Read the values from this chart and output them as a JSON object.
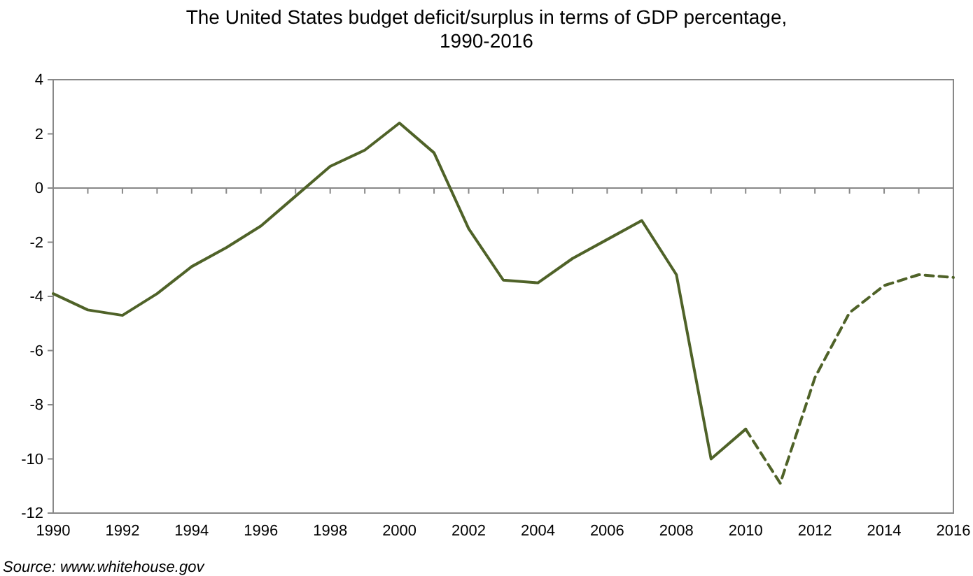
{
  "chart_data": {
    "type": "line",
    "title": "The United States budget deficit/surplus in terms of GDP percentage, 1990-2016",
    "xlim": [
      1990,
      2016
    ],
    "xticks": [
      1990,
      {
        "value": 1991,
        "label": null
      },
      1992,
      {
        "value": 1993,
        "label": null
      },
      1994,
      {
        "value": 1995,
        "label": null
      },
      1996,
      {
        "value": 1997,
        "label": null
      },
      1998,
      {
        "value": 1999,
        "label": null
      },
      2000,
      {
        "value": 2001,
        "label": null
      },
      2002,
      {
        "value": 2003,
        "label": null
      },
      2004,
      {
        "value": 2005,
        "label": null
      },
      2006,
      {
        "value": 2007,
        "label": null
      },
      2008,
      {
        "value": 2009,
        "label": null
      },
      2010,
      {
        "value": 2011,
        "label": null
      },
      2012,
      {
        "value": 2013,
        "label": null
      },
      2014,
      {
        "value": 2015,
        "label": null
      },
      2016
    ],
    "ylim": [
      -12,
      4
    ],
    "yticks": [
      -12,
      -10,
      -8,
      -6,
      -4,
      -2,
      0,
      2,
      4
    ],
    "marker": "none",
    "series": [
      {
        "color": "#4f6228",
        "line_style": "solid",
        "x": [
          1990,
          1991,
          1992,
          1993,
          1994,
          1995,
          1996,
          1997,
          1998,
          1999,
          2000,
          2001,
          2002,
          2003,
          2004,
          2005,
          2006,
          2007,
          2008,
          2009,
          2010
        ],
        "values": [
          -3.9,
          -4.5,
          -4.7,
          -3.9,
          -2.9,
          -2.2,
          -1.4,
          -0.3,
          0.8,
          1.4,
          2.4,
          1.3,
          -1.5,
          -3.4,
          -3.5,
          -2.6,
          -1.9,
          -1.2,
          -3.2,
          -10.0,
          -8.9
        ]
      },
      {
        "color": "#4f6228",
        "line_style": "dashed",
        "x": [
          2010,
          2011,
          2012,
          2013,
          2014,
          2015,
          2016
        ],
        "values": [
          -8.9,
          -10.9,
          -7.0,
          -4.6,
          -3.6,
          -3.2,
          -3.3
        ]
      }
    ],
    "annotations": [
      "Source: www.whitehouse.gov"
    ]
  }
}
